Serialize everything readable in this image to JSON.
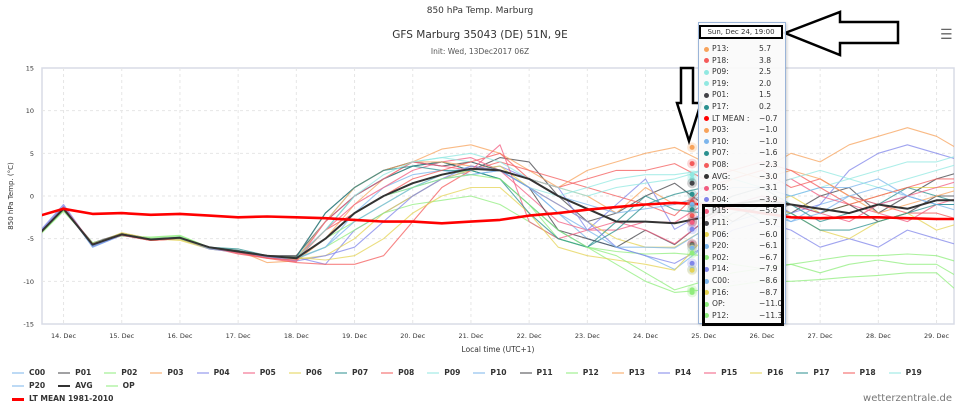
{
  "header": {
    "title": "850 hPa Temp. Marburg",
    "subtitle": "GFS Marburg 35043 (DE) 51N, 9E",
    "init": "Init: Wed, 13Dec2017 06Z",
    "menu_icon": "hamburger-icon"
  },
  "credit": "wetterzentrale.de",
  "tooltip": {
    "header": "Sun, Dec 24, 19:00",
    "rows": [
      {
        "name": "P13:",
        "value": "5.7",
        "color": "#f7a35c"
      },
      {
        "name": "P18:",
        "value": "3.8",
        "color": "#f45b5b"
      },
      {
        "name": "P09:",
        "value": "2.5",
        "color": "#91e8e1"
      },
      {
        "name": "P19:",
        "value": "2.0",
        "color": "#91e8e1"
      },
      {
        "name": "P01:",
        "value": "1.5",
        "color": "#434348"
      },
      {
        "name": "P17:",
        "value": "0.2",
        "color": "#2b908f"
      },
      {
        "name": "LT MEAN :",
        "value": "−0.7",
        "color": "#ff0000"
      },
      {
        "name": "P03:",
        "value": "−1.0",
        "color": "#f7a35c"
      },
      {
        "name": "P10:",
        "value": "−1.0",
        "color": "#7cb5ec"
      },
      {
        "name": "P07:",
        "value": "−1.6",
        "color": "#2b908f"
      },
      {
        "name": "P08:",
        "value": "−2.3",
        "color": "#f45b5b"
      },
      {
        "name": "AVG:",
        "value": "−3.0",
        "color": "#333333"
      },
      {
        "name": "P05:",
        "value": "−3.1",
        "color": "#f15c80"
      },
      {
        "name": "P04:",
        "value": "−3.9",
        "color": "#8085e9"
      },
      {
        "name": "P15:",
        "value": "−5.6",
        "color": "#f15c80"
      },
      {
        "name": "P11:",
        "value": "−5.7",
        "color": "#434348"
      },
      {
        "name": "P06:",
        "value": "−6.0",
        "color": "#e4d354"
      },
      {
        "name": "P20:",
        "value": "−6.1",
        "color": "#7cb5ec"
      },
      {
        "name": "P02:",
        "value": "−6.7",
        "color": "#90ed7d"
      },
      {
        "name": "P14:",
        "value": "−7.9",
        "color": "#8085e9"
      },
      {
        "name": "C00:",
        "value": "−8.6",
        "color": "#7cb5ec"
      },
      {
        "name": "P16:",
        "value": "−8.7",
        "color": "#e4d354"
      },
      {
        "name": "OP:",
        "value": "−11.0",
        "color": "#90ed7d"
      },
      {
        "name": "P12:",
        "value": "−11.3",
        "color": "#90ed7d"
      }
    ]
  },
  "chart_data": {
    "type": "line",
    "title": "850 hPa Temp. Marburg",
    "xlabel": "Local time (UTC+1)",
    "ylabel": "850 hPa Temp. (°C)",
    "ylim": [
      -15,
      15
    ],
    "yticks": [
      "15",
      "10",
      "5",
      "0",
      "-5",
      "-10",
      "-15"
    ],
    "xlim_days": [
      13.63,
      29.3
    ],
    "xticks": [
      "14. Dec",
      "15. Dec",
      "16. Dec",
      "17. Dec",
      "18. Dec",
      "19. Dec",
      "20. Dec",
      "21. Dec",
      "22. Dec",
      "23. Dec",
      "24. Dec",
      "25. Dec",
      "26. Dec",
      "27. Dec",
      "28. Dec",
      "29. Dec"
    ],
    "grid": true,
    "legend_position": "bottom",
    "x_days_start": 13.5,
    "x_step_days": 0.5,
    "highlight_day": 24.8,
    "series": [
      {
        "name": "C00",
        "color": "#7cb5ec",
        "values": [
          -5,
          -1.2,
          -6,
          -4.6,
          -5.2,
          -5,
          -6.2,
          -6.6,
          -7.2,
          -7.4,
          -6,
          -2,
          1,
          2.5,
          3,
          2.5,
          3,
          1,
          -2,
          -5,
          -6,
          -7,
          -8.6,
          -6,
          -3,
          -2,
          -3,
          -1,
          0,
          -1,
          0,
          -1,
          -1
        ]
      },
      {
        "name": "P01",
        "color": "#434348",
        "values": [
          -5,
          -1.5,
          -5.5,
          -4.4,
          -5,
          -5,
          -6,
          -6.5,
          -7,
          -7,
          -3,
          0,
          2,
          3.5,
          4,
          3,
          4.5,
          4,
          0,
          -3,
          -2,
          0,
          1.5,
          -1,
          -3,
          -1,
          -2,
          0,
          1,
          -2,
          0,
          2,
          3
        ]
      },
      {
        "name": "P02",
        "color": "#90ed7d",
        "values": [
          -5.2,
          -1.8,
          -5.5,
          -4.7,
          -4.8,
          -4.6,
          -6,
          -6.6,
          -7,
          -7.3,
          -5,
          -3,
          -1,
          1,
          2.5,
          3,
          2,
          -1,
          -5,
          -6,
          -6.5,
          -6.8,
          -6.7,
          -7,
          -8,
          -8.5,
          -8,
          -9,
          -8,
          -7.5,
          -8,
          -8,
          -10
        ]
      },
      {
        "name": "P03",
        "color": "#f7a35c",
        "values": [
          -5,
          -1.5,
          -5.6,
          -4.5,
          -5.1,
          -4.9,
          -6.1,
          -6.4,
          -7.8,
          -7.6,
          -5,
          -1,
          2,
          4,
          5.5,
          6,
          5,
          3,
          1,
          0,
          -2,
          1,
          -1,
          0,
          2,
          3,
          5,
          4,
          6,
          7,
          8,
          7,
          5
        ]
      },
      {
        "name": "P04",
        "color": "#8085e9",
        "values": [
          -4.8,
          -1,
          -5.8,
          -4.4,
          -5,
          -4.8,
          -6,
          -6.6,
          -7.1,
          -7.2,
          -8,
          -4,
          -2,
          0,
          2,
          3,
          3.5,
          2,
          1,
          -4,
          -1,
          2,
          -3.9,
          -2,
          -1,
          0,
          -2,
          -1,
          3,
          5,
          6,
          5,
          4
        ]
      },
      {
        "name": "P05",
        "color": "#f15c80",
        "values": [
          -5,
          -1.6,
          -5.6,
          -4.6,
          -5.2,
          -5,
          -6,
          -6.5,
          -7,
          -7.2,
          -4,
          -1,
          1,
          3,
          4,
          4.5,
          3,
          0,
          -3,
          -4,
          -4,
          -3,
          -3.1,
          -1,
          0,
          1,
          2,
          0,
          -1,
          -2,
          -3,
          -1,
          0
        ]
      },
      {
        "name": "P06",
        "color": "#e4d354",
        "values": [
          -5.1,
          -1.4,
          -5.7,
          -4.3,
          -5,
          -5.2,
          -6.2,
          -6.6,
          -7,
          -7.4,
          -7,
          -5,
          -2,
          0,
          2,
          3,
          3.5,
          1,
          -1,
          -3,
          -5,
          -6,
          -6,
          -4,
          -2,
          -1,
          0,
          -2,
          -1,
          0,
          1,
          1,
          1
        ]
      },
      {
        "name": "P07",
        "color": "#2b908f",
        "values": [
          -5,
          -1.5,
          -5.7,
          -4.6,
          -5.1,
          -4.8,
          -6,
          -6.2,
          -7,
          -7.3,
          -4,
          0,
          2,
          3.5,
          4,
          3,
          2,
          -1,
          -4,
          -6,
          -3,
          0,
          -1.6,
          -2,
          0,
          1,
          -1,
          -3,
          -2,
          -1,
          1,
          0,
          -1
        ]
      },
      {
        "name": "P08",
        "color": "#f45b5b",
        "values": [
          -5.2,
          -1.4,
          -5.9,
          -4.5,
          -5.2,
          -5,
          -6,
          -6.8,
          -7.3,
          -7.8,
          -8,
          -8,
          -7,
          -3,
          1,
          3,
          4,
          3,
          2,
          1,
          0,
          -1,
          -2.3,
          1,
          2,
          3,
          1,
          2,
          0,
          -1,
          -2,
          -2,
          -3
        ]
      },
      {
        "name": "P09",
        "color": "#91e8e1",
        "values": [
          -5,
          -1.5,
          -5.8,
          -4.5,
          -5,
          -4.9,
          -6.1,
          -6.5,
          -7,
          -7.3,
          -3,
          1,
          3,
          4,
          4.5,
          4,
          3,
          1,
          0,
          1,
          2,
          2.5,
          2.5,
          3,
          2,
          1,
          0,
          1,
          2,
          3,
          4,
          4,
          5
        ]
      },
      {
        "name": "P10",
        "color": "#7cb5ec",
        "values": [
          -5,
          -1.3,
          -6,
          -4.6,
          -5.1,
          -5,
          -6.1,
          -6.5,
          -7.1,
          -7.3,
          -5,
          -2,
          0,
          1,
          2.5,
          3.5,
          3,
          2,
          0,
          -1,
          -2,
          -1.5,
          -1,
          0,
          1,
          1,
          0,
          1,
          1,
          2,
          0,
          -1,
          -1
        ]
      },
      {
        "name": "P11",
        "color": "#434348",
        "values": [
          -5,
          -1.6,
          -5.6,
          -4.4,
          -5,
          -4.9,
          -6,
          -6.4,
          -7,
          -7.1,
          -2,
          1,
          3,
          4,
          3.5,
          4,
          3,
          1,
          -4,
          -5,
          -6,
          -4,
          -5.7,
          -3,
          -1,
          -2,
          -1,
          -2,
          -1,
          -3,
          -2,
          0,
          0
        ]
      },
      {
        "name": "P12",
        "color": "#90ed7d",
        "values": [
          -5.1,
          -1.7,
          -5.5,
          -4.6,
          -4.9,
          -4.7,
          -6,
          -6.5,
          -7,
          -7.3,
          -6,
          -4,
          -2,
          -1,
          -0.5,
          0,
          -1,
          -3,
          -5,
          -6,
          -8,
          -10,
          -11.3,
          -11,
          -10.5,
          -10,
          -10,
          -9.8,
          -9.5,
          -9.3,
          -9,
          -9,
          -12
        ]
      },
      {
        "name": "P13",
        "color": "#f7a35c",
        "values": [
          -5,
          -1.5,
          -5.7,
          -4.5,
          -5.2,
          -5,
          -6,
          -6.5,
          -7,
          -7.4,
          -3,
          1,
          3,
          4,
          4,
          3.5,
          3,
          2,
          1,
          3,
          4,
          5,
          5.7,
          4,
          3,
          2,
          3,
          2,
          0,
          -2,
          -1,
          0,
          1
        ]
      },
      {
        "name": "P14",
        "color": "#8085e9",
        "values": [
          -4.9,
          -1.2,
          -5.9,
          -4.6,
          -5,
          -5,
          -6.2,
          -6.6,
          -7.1,
          -7.6,
          -7,
          -6,
          -3,
          0,
          2,
          3.5,
          3,
          1,
          -1,
          -3,
          -6,
          -7,
          -7.9,
          -6,
          -4,
          -3,
          -4,
          -6,
          -5,
          -6,
          -4,
          -5,
          -6
        ]
      },
      {
        "name": "P15",
        "color": "#f15c80",
        "values": [
          -5,
          -1.4,
          -5.6,
          -4.5,
          -5.1,
          -5,
          -6,
          -6.7,
          -7.2,
          -7.7,
          -3,
          0,
          2,
          4,
          3.5,
          3,
          6,
          -3,
          -5,
          -4,
          -3,
          -4,
          -5.6,
          -3,
          -1,
          0,
          -1,
          -2,
          -3,
          -1,
          0,
          1,
          2
        ]
      },
      {
        "name": "P16",
        "color": "#e4d354",
        "values": [
          -5,
          -1.5,
          -5.7,
          -4.4,
          -5,
          -5.1,
          -6.1,
          -6.5,
          -7,
          -7.2,
          -7.5,
          -7,
          -5,
          -2,
          0,
          1,
          1,
          -2,
          -6,
          -7,
          -7.5,
          -8,
          -8.7,
          -5,
          -2,
          -1,
          -2,
          -4,
          -5,
          -3,
          -2,
          -4,
          -3
        ]
      },
      {
        "name": "P17",
        "color": "#2b908f",
        "values": [
          -5,
          -1.5,
          -5.8,
          -4.5,
          -5.1,
          -4.9,
          -6,
          -6.4,
          -7,
          -7.2,
          -2,
          1,
          3,
          3.5,
          3,
          3,
          2,
          -2,
          -5,
          -6,
          -4,
          -1,
          0.2,
          1,
          -1,
          -3,
          -2,
          -4,
          -4,
          -3,
          -2,
          -1,
          -1
        ]
      },
      {
        "name": "P18",
        "color": "#f45b5b",
        "values": [
          -5.1,
          -1.3,
          -5.6,
          -4.6,
          -5.2,
          -5,
          -6,
          -6.6,
          -7.3,
          -7.5,
          -4,
          -2,
          0,
          2,
          3,
          4,
          5,
          2,
          1,
          2,
          3,
          3,
          3.8,
          2,
          3,
          4,
          3,
          1,
          -1,
          0,
          1,
          2,
          2
        ]
      },
      {
        "name": "P19",
        "color": "#91e8e1",
        "values": [
          -5,
          -1.5,
          -5.7,
          -4.5,
          -5,
          -5,
          -6,
          -6.5,
          -7,
          -7.3,
          -4,
          0,
          2.5,
          4,
          4.5,
          5,
          4,
          2,
          1,
          0,
          1,
          1.5,
          2,
          3,
          2,
          1,
          2,
          3,
          2,
          1,
          2,
          3,
          4
        ]
      },
      {
        "name": "P20",
        "color": "#7cb5ec",
        "values": [
          -5,
          -1.4,
          -5.8,
          -4.5,
          -5.1,
          -4.9,
          -6.1,
          -6.5,
          -7.1,
          -7.3,
          -6,
          -3,
          -1,
          1,
          2,
          2.5,
          3,
          1,
          -2,
          -4,
          -6,
          -6,
          -6.1,
          -4,
          -2,
          -1,
          -3,
          -2,
          0,
          1,
          0,
          -1,
          -2
        ]
      },
      {
        "name": "AVG",
        "color": "#333333",
        "values": [
          -5,
          -1.5,
          -5.7,
          -4.5,
          -5.1,
          -4.9,
          -6,
          -6.5,
          -7,
          -7.3,
          -5,
          -2,
          0,
          1.5,
          2.5,
          3.2,
          3,
          2,
          0,
          -1.5,
          -3,
          -3,
          -3.2,
          -2.5,
          -1,
          -0.5,
          -1,
          -1.5,
          -2,
          -1,
          -1.5,
          -0.5,
          -0.5
        ]
      },
      {
        "name": "OP",
        "color": "#90ed7d",
        "values": [
          -5,
          -1.5,
          -5.7,
          -4.5,
          -5,
          -5,
          -6,
          -6.5,
          -7,
          -7.3,
          -5,
          -2,
          0,
          1,
          2,
          2.5,
          2,
          -1,
          -4,
          -6,
          -7,
          -9,
          -11,
          -10,
          -9,
          -8.5,
          -8,
          -7.5,
          -7,
          -7,
          -6.8,
          -7,
          -8
        ]
      },
      {
        "name": "LT MEAN 1981-2010",
        "color": "#ff0000",
        "values": [
          -2.5,
          -1.5,
          -2.1,
          -2,
          -2.2,
          -2.1,
          -2.3,
          -2.5,
          -2.4,
          -2.5,
          -2.6,
          -2.8,
          -3,
          -3,
          -3.2,
          -3,
          -2.8,
          -2.3,
          -2,
          -1.6,
          -1.3,
          -1,
          -0.8,
          -1,
          -1.5,
          -2,
          -2.5,
          -2.6,
          -2.5,
          -2.5,
          -2.6,
          -2.7,
          -2.7
        ]
      }
    ]
  }
}
